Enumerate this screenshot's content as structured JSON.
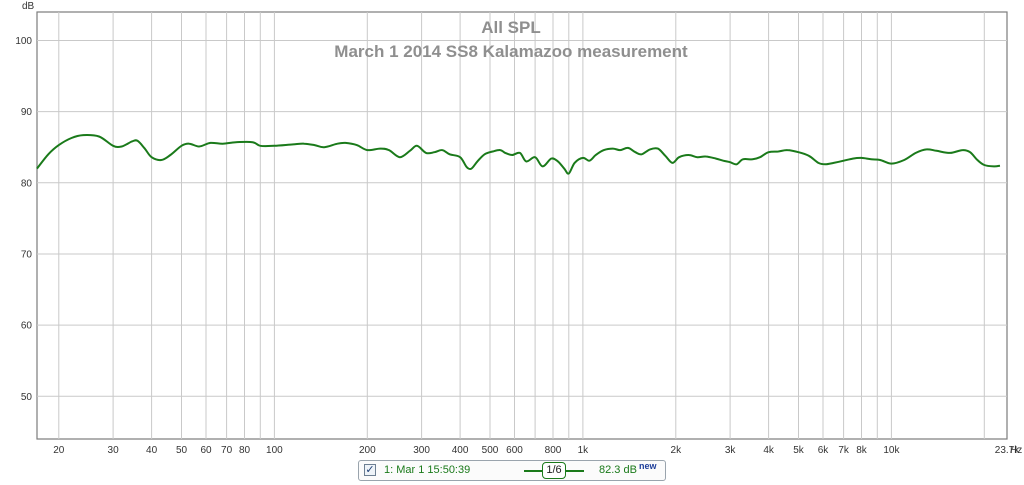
{
  "chart_data": {
    "type": "line",
    "title": "All SPL",
    "subtitle": "March 1 2014 SS8 Kalamazoo measurement",
    "ylabel": "dB",
    "xlabel": "Hz",
    "x_scale": "log",
    "xlim": [
      17,
      23700
    ],
    "ylim": [
      44,
      104
    ],
    "grid": true,
    "y_ticks": [
      50,
      60,
      70,
      80,
      90,
      100
    ],
    "x_tick_labels": [
      {
        "v": 20,
        "t": "20"
      },
      {
        "v": 30,
        "t": "30"
      },
      {
        "v": 40,
        "t": "40"
      },
      {
        "v": 50,
        "t": "50"
      },
      {
        "v": 60,
        "t": "60"
      },
      {
        "v": 70,
        "t": "70"
      },
      {
        "v": 80,
        "t": "80"
      },
      {
        "v": 100,
        "t": "100"
      },
      {
        "v": 200,
        "t": "200"
      },
      {
        "v": 300,
        "t": "300"
      },
      {
        "v": 400,
        "t": "400"
      },
      {
        "v": 500,
        "t": "500"
      },
      {
        "v": 600,
        "t": "600"
      },
      {
        "v": 800,
        "t": "800"
      },
      {
        "v": 1000,
        "t": "1k"
      },
      {
        "v": 2000,
        "t": "2k"
      },
      {
        "v": 3000,
        "t": "3k"
      },
      {
        "v": 4000,
        "t": "4k"
      },
      {
        "v": 5000,
        "t": "5k"
      },
      {
        "v": 6000,
        "t": "6k"
      },
      {
        "v": 7000,
        "t": "7k"
      },
      {
        "v": 8000,
        "t": "8k"
      },
      {
        "v": 10000,
        "t": "10k"
      },
      {
        "v": 23700,
        "t": "23.7k"
      }
    ],
    "x_gridlines": [
      20,
      30,
      40,
      50,
      60,
      70,
      80,
      90,
      100,
      200,
      300,
      400,
      500,
      600,
      700,
      800,
      900,
      1000,
      2000,
      3000,
      4000,
      5000,
      6000,
      7000,
      8000,
      9000,
      10000,
      20000
    ],
    "series": [
      {
        "name": "1: Mar 1 15:50:39",
        "color": "#1a7a1a",
        "points": [
          [
            17,
            82.0
          ],
          [
            18.5,
            84.0
          ],
          [
            20,
            85.3
          ],
          [
            22,
            86.3
          ],
          [
            24,
            86.7
          ],
          [
            27,
            86.5
          ],
          [
            30,
            85.2
          ],
          [
            32,
            85.1
          ],
          [
            34.5,
            85.8
          ],
          [
            36,
            85.9
          ],
          [
            38,
            84.8
          ],
          [
            40,
            83.6
          ],
          [
            43,
            83.2
          ],
          [
            46,
            83.9
          ],
          [
            50,
            85.2
          ],
          [
            53,
            85.5
          ],
          [
            57,
            85.1
          ],
          [
            62,
            85.6
          ],
          [
            68,
            85.5
          ],
          [
            75,
            85.7
          ],
          [
            85,
            85.7
          ],
          [
            90,
            85.2
          ],
          [
            100,
            85.2
          ],
          [
            115,
            85.4
          ],
          [
            125,
            85.5
          ],
          [
            135,
            85.3
          ],
          [
            145,
            85.0
          ],
          [
            160,
            85.5
          ],
          [
            170,
            85.6
          ],
          [
            185,
            85.3
          ],
          [
            200,
            84.6
          ],
          [
            220,
            84.8
          ],
          [
            235,
            84.6
          ],
          [
            255,
            83.6
          ],
          [
            275,
            84.5
          ],
          [
            290,
            85.2
          ],
          [
            310,
            84.2
          ],
          [
            330,
            84.3
          ],
          [
            350,
            84.6
          ],
          [
            370,
            84.0
          ],
          [
            400,
            83.6
          ],
          [
            420,
            82.2
          ],
          [
            435,
            82.0
          ],
          [
            455,
            83.0
          ],
          [
            480,
            84.0
          ],
          [
            510,
            84.4
          ],
          [
            540,
            84.6
          ],
          [
            560,
            84.2
          ],
          [
            590,
            83.9
          ],
          [
            625,
            84.2
          ],
          [
            655,
            83.0
          ],
          [
            700,
            83.6
          ],
          [
            740,
            82.3
          ],
          [
            790,
            83.4
          ],
          [
            830,
            83.0
          ],
          [
            870,
            82.0
          ],
          [
            900,
            81.3
          ],
          [
            940,
            82.8
          ],
          [
            1000,
            83.5
          ],
          [
            1050,
            83.1
          ],
          [
            1100,
            83.9
          ],
          [
            1170,
            84.6
          ],
          [
            1250,
            84.8
          ],
          [
            1320,
            84.6
          ],
          [
            1400,
            84.9
          ],
          [
            1480,
            84.3
          ],
          [
            1550,
            84.0
          ],
          [
            1650,
            84.7
          ],
          [
            1750,
            84.8
          ],
          [
            1850,
            83.8
          ],
          [
            1950,
            82.8
          ],
          [
            2050,
            83.6
          ],
          [
            2200,
            83.9
          ],
          [
            2350,
            83.6
          ],
          [
            2500,
            83.7
          ],
          [
            2700,
            83.4
          ],
          [
            2850,
            83.1
          ],
          [
            3000,
            82.9
          ],
          [
            3150,
            82.6
          ],
          [
            3300,
            83.3
          ],
          [
            3550,
            83.3
          ],
          [
            3750,
            83.6
          ],
          [
            4000,
            84.3
          ],
          [
            4300,
            84.4
          ],
          [
            4600,
            84.6
          ],
          [
            5000,
            84.3
          ],
          [
            5400,
            83.8
          ],
          [
            5800,
            82.8
          ],
          [
            6100,
            82.6
          ],
          [
            6500,
            82.8
          ],
          [
            7000,
            83.1
          ],
          [
            7500,
            83.4
          ],
          [
            8000,
            83.5
          ],
          [
            8600,
            83.3
          ],
          [
            9200,
            83.2
          ],
          [
            10000,
            82.7
          ],
          [
            11000,
            83.2
          ],
          [
            12000,
            84.2
          ],
          [
            13000,
            84.7
          ],
          [
            14000,
            84.5
          ],
          [
            15500,
            84.2
          ],
          [
            17000,
            84.6
          ],
          [
            18000,
            84.3
          ],
          [
            19000,
            83.2
          ],
          [
            20000,
            82.5
          ],
          [
            21500,
            82.3
          ],
          [
            22500,
            82.4
          ]
        ]
      }
    ]
  },
  "legend": {
    "checkbox_mark": "✓",
    "entry_name": "1: Mar 1 15:50:39",
    "smoothing": "1/6",
    "value": "82.3 dB",
    "new_label": "new"
  }
}
